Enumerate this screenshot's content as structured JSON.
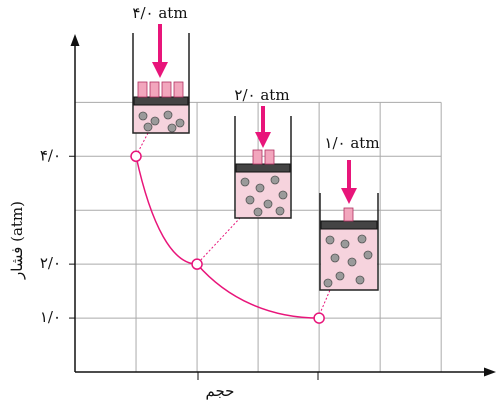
{
  "chart_data": {
    "type": "line",
    "y_label": "فشار (atm)",
    "x_label": "حجم",
    "x": [
      1,
      2,
      4
    ],
    "series": [
      {
        "values": [
          4,
          2,
          1
        ],
        "color": "#e8157a"
      }
    ],
    "xlim": [
      0,
      6.8
    ],
    "ylim": [
      0,
      6.1
    ],
    "yticks": [
      {
        "value": 1,
        "label": "۱/۰"
      },
      {
        "value": 2,
        "label": "۲/۰"
      },
      {
        "value": 4,
        "label": "۴/۰"
      }
    ],
    "xgrid": [
      1,
      2,
      3,
      4,
      5,
      6
    ],
    "ygrid": [
      1,
      2,
      3,
      4,
      5
    ],
    "grid": true,
    "annotations": [
      "۴/۰ atm",
      "۲/۰ atm",
      "۱/۰ atm"
    ]
  }
}
